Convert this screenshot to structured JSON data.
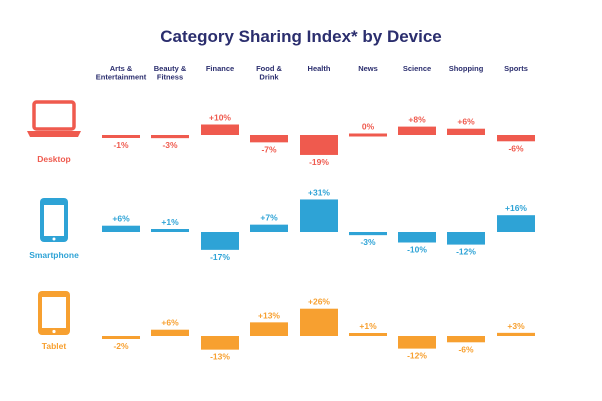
{
  "chart_data": {
    "type": "bar",
    "title": "Category Sharing Index* by Device",
    "categories": [
      [
        "Arts &",
        "Entertainment"
      ],
      [
        "Beauty &",
        "Fitness"
      ],
      [
        "Finance"
      ],
      [
        "Food &",
        "Drink"
      ],
      [
        "Health"
      ],
      [
        "News"
      ],
      [
        "Science"
      ],
      [
        "Shopping"
      ],
      [
        "Sports"
      ]
    ],
    "series": [
      {
        "name": "Desktop",
        "icon": "laptop-icon",
        "color": "#ef5a4e",
        "values": [
          -1,
          -3,
          10,
          -7,
          -19,
          0,
          8,
          6,
          -6
        ],
        "labels": [
          "-1%",
          "-3%",
          "+10%",
          "-7%",
          "-19%",
          "0%",
          "+8%",
          "+6%",
          "-6%"
        ]
      },
      {
        "name": "Smartphone",
        "icon": "smartphone-icon",
        "color": "#2ea3d6",
        "values": [
          6,
          1,
          -17,
          7,
          31,
          -3,
          -10,
          -12,
          16
        ],
        "labels": [
          "+6%",
          "+1%",
          "-17%",
          "+7%",
          "+31%",
          "-3%",
          "-10%",
          "-12%",
          "+16%"
        ]
      },
      {
        "name": "Tablet",
        "icon": "tablet-icon",
        "color": "#f7a030",
        "values": [
          -2,
          6,
          -13,
          13,
          26,
          1,
          -12,
          -6,
          3
        ],
        "labels": [
          "-2%",
          "+6%",
          "-13%",
          "+13%",
          "+26%",
          "+1%",
          "-12%",
          "-6%",
          "+3%"
        ]
      }
    ],
    "grid": false,
    "legend": "none"
  }
}
